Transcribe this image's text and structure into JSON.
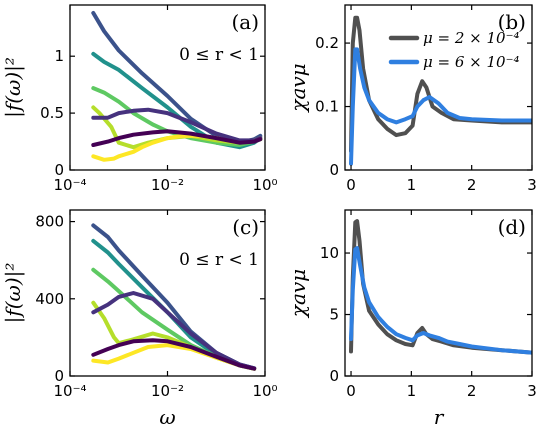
{
  "chart_data": [
    {
      "panel": "a",
      "type": "line",
      "panel_label": "(a)",
      "annotation": "0 ≤ r < 1",
      "ylabel": "|f(ω)|²",
      "xlabel": "",
      "xscale": "log",
      "xlim": [
        0.0001,
        1.0
      ],
      "ylim": [
        0,
        1.45
      ],
      "xticks": [
        0.0001,
        0.01,
        1.0
      ],
      "xtick_labels": [
        "10⁻⁴",
        "10⁻²",
        "10⁰"
      ],
      "yticks": [
        0,
        0.5,
        1.0
      ],
      "ytick_labels": [
        "0",
        "0.5",
        "1"
      ],
      "series": [
        {
          "color": "#3b528b",
          "x": [
            0.0003,
            0.0005,
            0.001,
            0.003,
            0.01,
            0.03,
            0.1,
            0.3,
            0.6,
            0.8
          ],
          "y": [
            1.38,
            1.22,
            1.05,
            0.85,
            0.65,
            0.45,
            0.3,
            0.24,
            0.27,
            0.3
          ]
        },
        {
          "color": "#21918c",
          "x": [
            0.0003,
            0.0005,
            0.001,
            0.003,
            0.01,
            0.03,
            0.1,
            0.3,
            0.6,
            0.8
          ],
          "y": [
            1.02,
            0.95,
            0.88,
            0.72,
            0.55,
            0.38,
            0.24,
            0.2,
            0.24,
            0.28
          ]
        },
        {
          "color": "#5ec962",
          "x": [
            0.0003,
            0.0005,
            0.001,
            0.002,
            0.005,
            0.01,
            0.03,
            0.1,
            0.3,
            0.6,
            0.8
          ],
          "y": [
            0.72,
            0.68,
            0.6,
            0.5,
            0.4,
            0.34,
            0.28,
            0.24,
            0.22,
            0.25,
            0.27
          ]
        },
        {
          "color": "#b5de2b",
          "x": [
            0.0003,
            0.0004,
            0.0007,
            0.001,
            0.002,
            0.004,
            0.01,
            0.03,
            0.1,
            0.3,
            0.6,
            0.8
          ],
          "y": [
            0.55,
            0.5,
            0.38,
            0.24,
            0.2,
            0.24,
            0.28,
            0.3,
            0.26,
            0.24,
            0.26,
            0.27
          ]
        },
        {
          "color": "#fde725",
          "x": [
            0.0003,
            0.0005,
            0.0008,
            0.001,
            0.002,
            0.003,
            0.005,
            0.01,
            0.02,
            0.05,
            0.1,
            0.3,
            0.6,
            0.8
          ],
          "y": [
            0.12,
            0.09,
            0.1,
            0.12,
            0.16,
            0.2,
            0.24,
            0.28,
            0.3,
            0.3,
            0.28,
            0.25,
            0.26,
            0.28
          ]
        },
        {
          "color": "#46327e",
          "x": [
            0.0003,
            0.0006,
            0.001,
            0.002,
            0.004,
            0.01,
            0.03,
            0.1,
            0.3,
            0.6,
            0.8
          ],
          "y": [
            0.46,
            0.46,
            0.5,
            0.52,
            0.53,
            0.5,
            0.42,
            0.32,
            0.26,
            0.26,
            0.28
          ]
        },
        {
          "color": "#440154",
          "x": [
            0.0003,
            0.0006,
            0.001,
            0.002,
            0.005,
            0.01,
            0.03,
            0.1,
            0.3,
            0.6,
            0.8
          ],
          "y": [
            0.22,
            0.25,
            0.28,
            0.31,
            0.33,
            0.34,
            0.32,
            0.28,
            0.24,
            0.25,
            0.27
          ]
        }
      ]
    },
    {
      "panel": "b",
      "type": "line",
      "panel_label": "(b)",
      "ylabel": "χavμ",
      "xlabel": "",
      "xlim": [
        -0.1,
        3.0
      ],
      "ylim": [
        0,
        0.26
      ],
      "xticks": [
        0,
        1,
        2,
        3
      ],
      "xtick_labels": [
        "0",
        "1",
        "2",
        "3"
      ],
      "yticks": [
        0,
        0.1,
        0.2
      ],
      "ytick_labels": [
        "0",
        "0.1",
        "0.2"
      ],
      "legend_position": "top-right",
      "series": [
        {
          "name": "μ = 2 × 10⁻⁴",
          "color": "#505050",
          "x": [
            0,
            0.03,
            0.07,
            0.1,
            0.14,
            0.2,
            0.3,
            0.45,
            0.6,
            0.75,
            0.9,
            1.02,
            1.1,
            1.18,
            1.25,
            1.35,
            1.5,
            1.7,
            2.0,
            2.5,
            3.0
          ],
          "y": [
            0.03,
            0.2,
            0.24,
            0.24,
            0.22,
            0.16,
            0.11,
            0.08,
            0.065,
            0.055,
            0.058,
            0.07,
            0.12,
            0.14,
            0.13,
            0.1,
            0.09,
            0.08,
            0.078,
            0.075,
            0.075
          ]
        },
        {
          "name": "μ = 6 × 10⁻⁴",
          "color": "#2f7fe0",
          "x": [
            0,
            0.03,
            0.07,
            0.1,
            0.15,
            0.22,
            0.3,
            0.45,
            0.6,
            0.75,
            0.9,
            1.02,
            1.1,
            1.2,
            1.3,
            1.45,
            1.6,
            1.8,
            2.0,
            2.5,
            3.0
          ],
          "y": [
            0.01,
            0.1,
            0.19,
            0.19,
            0.16,
            0.13,
            0.11,
            0.09,
            0.08,
            0.075,
            0.08,
            0.085,
            0.1,
            0.11,
            0.115,
            0.105,
            0.09,
            0.082,
            0.08,
            0.078,
            0.078
          ]
        }
      ]
    },
    {
      "panel": "c",
      "type": "line",
      "panel_label": "(c)",
      "annotation": "0 ≤ r < 1",
      "ylabel": "|f(ω)|²",
      "xlabel": "ω",
      "xscale": "log",
      "xlim": [
        0.0001,
        1.0
      ],
      "ylim": [
        0,
        860
      ],
      "xticks": [
        0.0001,
        0.01,
        1.0
      ],
      "xtick_labels": [
        "10⁻⁴",
        "10⁻²",
        "10⁰"
      ],
      "yticks": [
        0,
        400,
        800
      ],
      "ytick_labels": [
        "0",
        "400",
        "800"
      ],
      "series": [
        {
          "color": "#3b528b",
          "x": [
            0.0003,
            0.0006,
            0.001,
            0.003,
            0.01,
            0.03,
            0.1,
            0.3,
            0.6
          ],
          "y": [
            780,
            720,
            650,
            520,
            380,
            230,
            120,
            60,
            40
          ]
        },
        {
          "color": "#21918c",
          "x": [
            0.0003,
            0.0006,
            0.001,
            0.003,
            0.01,
            0.03,
            0.1,
            0.3,
            0.6
          ],
          "y": [
            700,
            640,
            580,
            460,
            330,
            200,
            110,
            55,
            38
          ]
        },
        {
          "color": "#5ec962",
          "x": [
            0.0003,
            0.0006,
            0.001,
            0.003,
            0.01,
            0.03,
            0.1,
            0.3,
            0.6
          ],
          "y": [
            550,
            490,
            440,
            330,
            240,
            160,
            100,
            55,
            38
          ]
        },
        {
          "color": "#b5de2b",
          "x": [
            0.0003,
            0.0005,
            0.0008,
            0.001,
            0.002,
            0.005,
            0.01,
            0.03,
            0.1,
            0.3,
            0.6
          ],
          "y": [
            380,
            300,
            200,
            170,
            190,
            220,
            200,
            150,
            95,
            55,
            38
          ]
        },
        {
          "color": "#fde725",
          "x": [
            0.0003,
            0.0006,
            0.001,
            0.002,
            0.004,
            0.01,
            0.03,
            0.1,
            0.3,
            0.6
          ],
          "y": [
            80,
            70,
            90,
            120,
            150,
            160,
            140,
            95,
            55,
            38
          ]
        },
        {
          "color": "#46327e",
          "x": [
            0.0003,
            0.0006,
            0.001,
            0.002,
            0.005,
            0.01,
            0.03,
            0.1,
            0.3,
            0.6
          ],
          "y": [
            330,
            370,
            410,
            430,
            400,
            330,
            220,
            120,
            60,
            40
          ]
        },
        {
          "color": "#440154",
          "x": [
            0.0003,
            0.0006,
            0.001,
            0.002,
            0.005,
            0.01,
            0.03,
            0.1,
            0.3,
            0.6
          ],
          "y": [
            110,
            140,
            160,
            180,
            185,
            180,
            150,
            100,
            55,
            38
          ]
        }
      ]
    },
    {
      "panel": "d",
      "type": "line",
      "panel_label": "(d)",
      "ylabel": "χavμ",
      "xlabel": "r",
      "xlim": [
        -0.1,
        3.0
      ],
      "ylim": [
        0,
        13.5
      ],
      "xticks": [
        0,
        1,
        2,
        3
      ],
      "xtick_labels": [
        "0",
        "1",
        "2",
        "3"
      ],
      "yticks": [
        0,
        5,
        10
      ],
      "ytick_labels": [
        "0",
        "5",
        "10"
      ],
      "series": [
        {
          "name": "μ = 2 × 10⁻⁴",
          "color": "#505050",
          "x": [
            0,
            0.03,
            0.07,
            0.1,
            0.14,
            0.2,
            0.3,
            0.45,
            0.6,
            0.75,
            0.9,
            1.02,
            1.1,
            1.18,
            1.25,
            1.35,
            1.5,
            1.7,
            2.0,
            2.5,
            3.0
          ],
          "y": [
            2.0,
            8.0,
            12.5,
            12.6,
            11.0,
            7.5,
            5.3,
            4.2,
            3.4,
            2.9,
            2.6,
            2.5,
            3.5,
            3.9,
            3.4,
            3.0,
            2.8,
            2.5,
            2.3,
            2.1,
            1.9
          ]
        },
        {
          "name": "μ = 6 × 10⁻⁴",
          "color": "#2f7fe0",
          "x": [
            0,
            0.03,
            0.07,
            0.1,
            0.15,
            0.22,
            0.3,
            0.45,
            0.6,
            0.75,
            0.9,
            1.02,
            1.1,
            1.2,
            1.3,
            1.45,
            1.6,
            1.8,
            2.0,
            2.5,
            3.0
          ],
          "y": [
            3.0,
            7.0,
            10.3,
            10.4,
            9.0,
            7.2,
            6.0,
            4.8,
            4.0,
            3.4,
            3.1,
            2.9,
            3.3,
            3.5,
            3.3,
            3.1,
            2.8,
            2.6,
            2.4,
            2.1,
            1.9
          ]
        }
      ]
    }
  ]
}
